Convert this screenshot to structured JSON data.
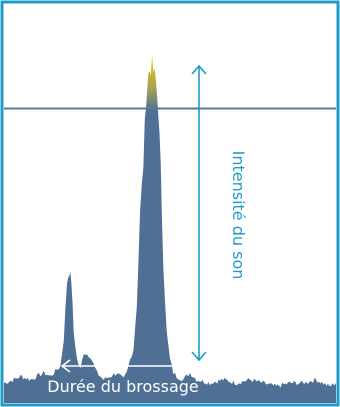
{
  "chart_data": {
    "type": "area",
    "title": "",
    "xlabel": "Durée du brossage",
    "ylabel": "Intensité du son",
    "xlim": [
      0,
      100
    ],
    "ylim": [
      0,
      100
    ],
    "threshold": 86,
    "series": [
      {
        "x": [
          0,
          3,
          5,
          8,
          10,
          12,
          14,
          16,
          17,
          18,
          19,
          19.7,
          20.3,
          21,
          22,
          23,
          24,
          26,
          28,
          30,
          32,
          34,
          36,
          37,
          38,
          39,
          40,
          41,
          42,
          42.8,
          43.5,
          44.2,
          45,
          45.8,
          46.5,
          47.2,
          48,
          49,
          50,
          51,
          52,
          54,
          56,
          58,
          62,
          66,
          70,
          74,
          78,
          82,
          86,
          90,
          94,
          98,
          100
        ],
        "values": [
          5,
          6,
          7,
          6,
          7,
          8,
          7,
          9,
          10,
          18,
          35,
          38,
          35,
          20,
          12,
          9,
          14,
          13,
          8,
          6,
          7,
          8,
          6,
          8,
          12,
          15,
          28,
          55,
          70,
          90,
          96,
          99,
          97,
          93,
          86,
          68,
          40,
          20,
          12,
          8,
          7,
          6,
          8,
          6,
          5,
          6,
          5,
          6,
          5,
          4,
          5,
          5,
          6,
          4,
          5
        ]
      }
    ],
    "colors": {
      "frame": "#1e9cc8",
      "fill": "#4f6f95",
      "peak": "#e1c62a",
      "threshold_line": "#5d7a96",
      "annotation": "#1e9cc8",
      "duration_arrow": "#ffffff"
    },
    "grid": false,
    "legend": "none"
  }
}
